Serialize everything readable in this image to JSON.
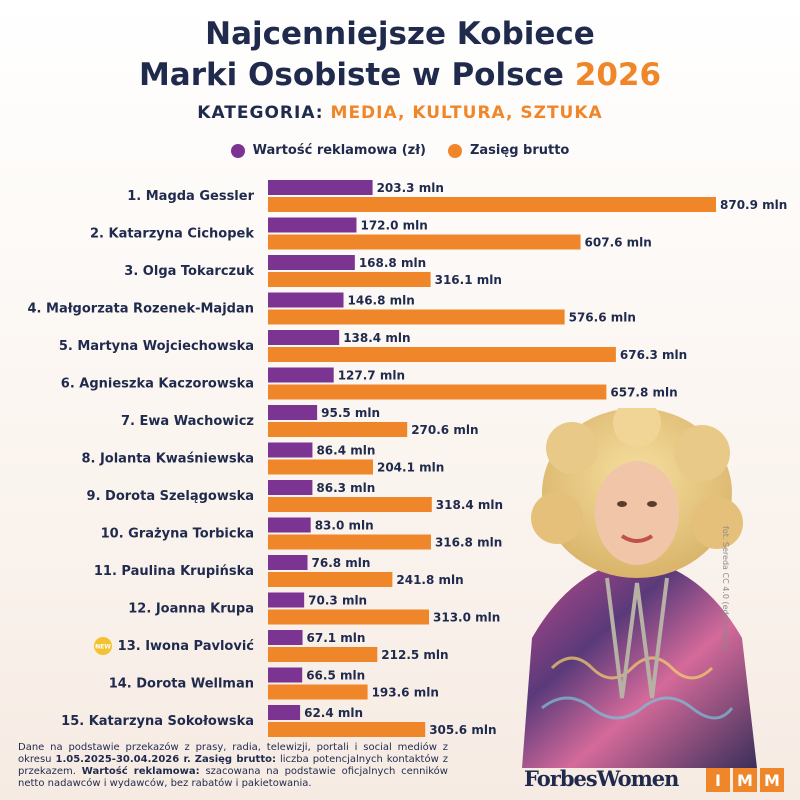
{
  "title": {
    "line1": "Najcenniejsze Kobiece",
    "line2": "Marki Osobiste w Polsce",
    "year": "2026"
  },
  "category": {
    "label": "KATEGORIA:",
    "value": "MEDIA, KULTURA, SZTUKA"
  },
  "legend": [
    {
      "label": "Wartość reklamowa (zł)",
      "color": "#7b3491"
    },
    {
      "label": "Zasięg brutto",
      "color": "#f0862a"
    }
  ],
  "badge_text": "NEW",
  "photo_credit": "fot. Sereda CC 4.0 (edytowane)",
  "footnote": {
    "text1": "Dane na podstawie przekazów z prasy, radia, telewizji, portali i social mediów z okresu",
    "period": "1.05.2025-30.04.2026 r.",
    "term1": "Zasięg brutto:",
    "text2": "liczba potencjalnych kontaktów z przekazem.",
    "term2": "Wartość reklamowa:",
    "text3": "szacowana na podstawie oficjalnych cenników netto nadawców i wydawców, bez rabatów i pakietowania."
  },
  "logos": {
    "forbes": "ForbesWomen",
    "imm": [
      "I",
      "M",
      "M"
    ]
  },
  "chart_data": {
    "type": "bar",
    "orientation": "horizontal",
    "unit": "mln",
    "categories": [
      "1. Magda Gessler",
      "2. Katarzyna Cichopek",
      "3. Olga Tokarczuk",
      "4. Małgorzata Rozenek-Majdan",
      "5. Martyna Wojciechowska",
      "6. Agnieszka Kaczorowska",
      "7. Ewa Wachowicz",
      "8. Jolanta Kwaśniewska",
      "9. Dorota Szelągowska",
      "10. Grażyna Torbicka",
      "11. Paulina Krupińska",
      "12. Joanna Krupa",
      "13. Iwona Pavlović",
      "14. Dorota Wellman",
      "15. Katarzyna Sokołowska"
    ],
    "series": [
      {
        "name": "Wartość reklamowa (zł)",
        "color": "#7b3491",
        "values": [
          203.3,
          172.0,
          168.8,
          146.8,
          138.4,
          127.7,
          95.5,
          86.4,
          86.3,
          83.0,
          76.8,
          70.3,
          67.1,
          66.5,
          62.4
        ],
        "labels": [
          "203.3 mln",
          "172.0 mln",
          "168.8 mln",
          "146.8 mln",
          "138.4 mln",
          "127.7 mln",
          "95.5 mln",
          "86.4 mln",
          "86.3 mln",
          "83.0 mln",
          "76.8 mln",
          "70.3 mln",
          "67.1 mln",
          "66.5 mln",
          "62.4 mln"
        ]
      },
      {
        "name": "Zasięg brutto",
        "color": "#f0862a",
        "values": [
          870.9,
          607.6,
          316.1,
          576.6,
          676.3,
          657.8,
          270.6,
          204.1,
          318.4,
          316.8,
          241.8,
          313.0,
          212.5,
          193.6,
          305.6
        ],
        "labels": [
          "870.9 mln",
          "607.6 mln",
          "316.1 mln",
          "576.6 mln",
          "676.3 mln",
          "657.8 mln",
          "270.6 mln",
          "204.1 mln",
          "318.4 mln",
          "316.8 mln",
          "241.8 mln",
          "313.0 mln",
          "212.5 mln",
          "193.6 mln",
          "305.6 mln"
        ]
      }
    ],
    "new_entries": [
      "13. Iwona Pavlović"
    ],
    "grid": false,
    "legend_position": "top-center"
  }
}
